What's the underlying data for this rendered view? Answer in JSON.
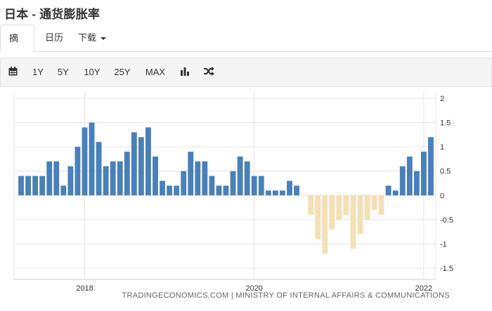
{
  "page_title": "日本 - 通货膨胀率",
  "tabs": [
    {
      "label": "摘要"
    },
    {
      "label": "日历"
    },
    {
      "label": "下载"
    }
  ],
  "toolbar": {
    "ranges": [
      "1Y",
      "5Y",
      "10Y",
      "25Y",
      "MAX"
    ],
    "icons": [
      "calendar-icon",
      "bar-chart-icon",
      "shuffle-icon"
    ]
  },
  "source": "TRADINGECONOMICS.COM | MINISTRY OF INTERNAL AFFAIRS & COMMUNICATIONS",
  "colors": {
    "positive": "#4a80b8",
    "negative": "#f5dfb5",
    "grid": "#e4e4e4"
  },
  "chart_data": {
    "type": "bar",
    "title": "",
    "xlabel": "",
    "ylabel": "",
    "ylim": [
      -1.5,
      2
    ],
    "y_ticks": [
      2,
      1.5,
      1,
      0.5,
      0,
      -0.5,
      -1,
      -1.5
    ],
    "y_tick_labels": [
      "2",
      "1.5",
      "1",
      "0.5",
      "0",
      "-0.5",
      "-1",
      "-1.5"
    ],
    "x_tick_labels": [
      {
        "label": "2018",
        "index": 9
      },
      {
        "label": "2020",
        "index": 33
      },
      {
        "label": "2022",
        "index": 57
      }
    ],
    "grid": true,
    "values": [
      0.4,
      0.4,
      0.4,
      0.4,
      0.7,
      0.7,
      0.2,
      0.6,
      1.0,
      1.4,
      1.5,
      1.1,
      0.6,
      0.7,
      0.7,
      0.9,
      1.3,
      1.2,
      1.4,
      0.8,
      0.3,
      0.2,
      0.2,
      0.5,
      0.9,
      0.7,
      0.7,
      0.4,
      0.2,
      0.2,
      0.5,
      0.8,
      0.7,
      0.4,
      0.4,
      0.1,
      0.1,
      0.1,
      0.3,
      0.2,
      0.0,
      -0.4,
      -0.9,
      -1.2,
      -0.7,
      -0.5,
      -0.4,
      -1.1,
      -0.8,
      -0.5,
      -0.3,
      -0.4,
      0.2,
      0.1,
      0.6,
      0.8,
      0.5,
      0.9,
      1.2
    ]
  }
}
